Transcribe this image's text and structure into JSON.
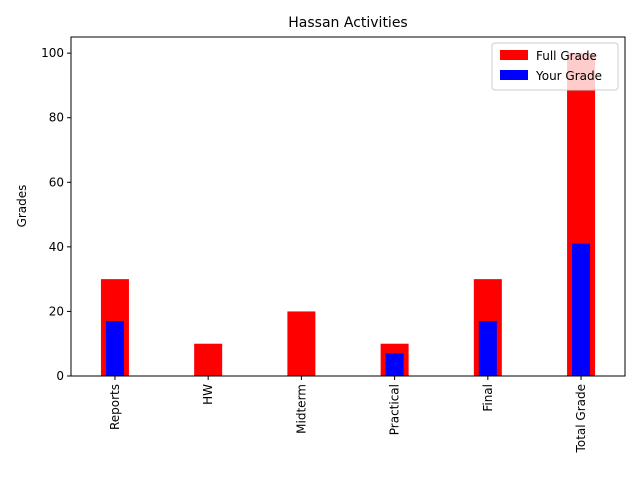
{
  "chart_data": {
    "type": "bar",
    "title": "Hassan Activities",
    "xlabel": "",
    "ylabel": "Grades",
    "categories": [
      "Reports",
      "HW",
      "Midterm",
      "Practical",
      "Final",
      "Total Grade"
    ],
    "series": [
      {
        "name": "Full Grade",
        "color": "#ff0000",
        "values": [
          30,
          10,
          20,
          10,
          30,
          100
        ]
      },
      {
        "name": "Your Grade",
        "color": "#0000ff",
        "values": [
          17,
          0,
          0,
          7,
          17,
          41
        ]
      }
    ],
    "ylim": [
      0,
      105
    ],
    "yticks": [
      0,
      20,
      40,
      60,
      80,
      100
    ],
    "grid": false,
    "legend": "top-right"
  }
}
